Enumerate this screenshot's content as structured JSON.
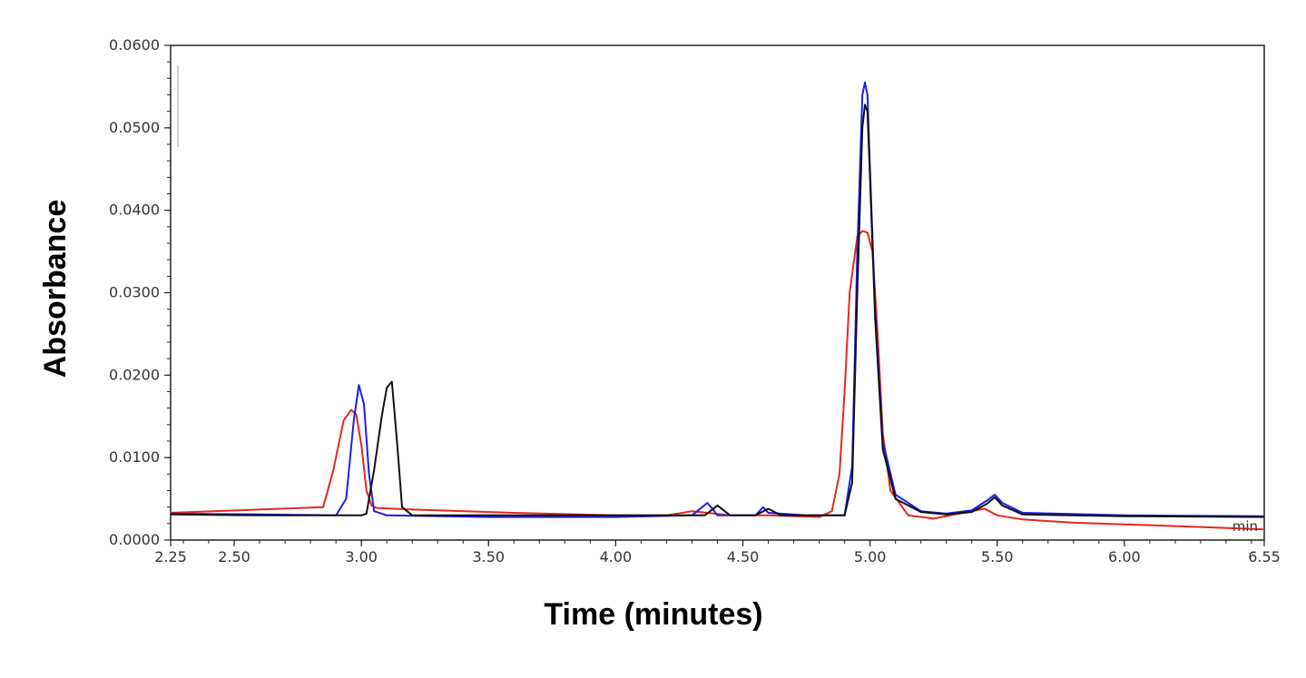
{
  "chart_data": {
    "type": "line",
    "title": "",
    "xlabel": "Time (minutes)",
    "ylabel": "Absorbance",
    "x_unit_label": "min",
    "xlim": [
      2.25,
      6.55
    ],
    "ylim": [
      0.0,
      0.06
    ],
    "x_ticks": [
      {
        "value": 2.25,
        "label": "2.25"
      },
      {
        "value": 2.5,
        "label": "2.50"
      },
      {
        "value": 3.0,
        "label": "3.00"
      },
      {
        "value": 3.5,
        "label": "3.50"
      },
      {
        "value": 4.0,
        "label": "4.00"
      },
      {
        "value": 4.5,
        "label": "4.50"
      },
      {
        "value": 5.0,
        "label": "5.00"
      },
      {
        "value": 5.5,
        "label": "5.50"
      },
      {
        "value": 6.0,
        "label": "6.00"
      },
      {
        "value": 6.55,
        "label": "6.55"
      }
    ],
    "y_ticks": [
      {
        "value": 0.0,
        "label": "0.0000"
      },
      {
        "value": 0.01,
        "label": "0.0100"
      },
      {
        "value": 0.02,
        "label": "0.0200"
      },
      {
        "value": 0.03,
        "label": "0.0300"
      },
      {
        "value": 0.04,
        "label": "0.0400"
      },
      {
        "value": 0.05,
        "label": "0.0500"
      },
      {
        "value": 0.06,
        "label": "0.0600"
      }
    ],
    "grid": false,
    "legend": "none",
    "series": [
      {
        "color": "#e8281e",
        "x": [
          2.25,
          2.6,
          2.85,
          2.89,
          2.93,
          2.96,
          2.98,
          3.0,
          3.02,
          3.04,
          3.06,
          3.2,
          3.6,
          4.0,
          4.2,
          4.3,
          4.36,
          4.45,
          4.6,
          4.8,
          4.85,
          4.88,
          4.9,
          4.92,
          4.95,
          4.97,
          4.99,
          5.01,
          5.03,
          5.05,
          5.08,
          5.15,
          5.25,
          5.35,
          5.45,
          5.5,
          5.6,
          5.8,
          6.2,
          6.55
        ],
        "y": [
          0.0033,
          0.0037,
          0.004,
          0.0085,
          0.0145,
          0.0158,
          0.0152,
          0.0115,
          0.006,
          0.0042,
          0.0039,
          0.0037,
          0.0033,
          0.003,
          0.003,
          0.0035,
          0.0033,
          0.003,
          0.003,
          0.0028,
          0.0035,
          0.008,
          0.018,
          0.03,
          0.0368,
          0.0375,
          0.0373,
          0.035,
          0.025,
          0.013,
          0.006,
          0.003,
          0.0026,
          0.0032,
          0.0038,
          0.003,
          0.0025,
          0.0021,
          0.0017,
          0.0013
        ]
      },
      {
        "color": "#1d1de8",
        "x": [
          2.25,
          2.6,
          2.9,
          2.94,
          2.97,
          2.99,
          3.01,
          3.03,
          3.05,
          3.1,
          3.5,
          4.0,
          4.3,
          4.36,
          4.38,
          4.4,
          4.55,
          4.58,
          4.6,
          4.75,
          4.9,
          4.93,
          4.95,
          4.97,
          4.98,
          4.99,
          5.0,
          5.02,
          5.05,
          5.1,
          5.2,
          5.3,
          5.4,
          5.46,
          5.49,
          5.52,
          5.6,
          6.0,
          6.55
        ],
        "y": [
          0.0032,
          0.0031,
          0.003,
          0.005,
          0.0145,
          0.0188,
          0.0165,
          0.008,
          0.0035,
          0.003,
          0.0028,
          0.0028,
          0.003,
          0.0045,
          0.0038,
          0.003,
          0.003,
          0.004,
          0.0033,
          0.003,
          0.003,
          0.009,
          0.035,
          0.054,
          0.0555,
          0.054,
          0.045,
          0.028,
          0.012,
          0.0055,
          0.0035,
          0.0032,
          0.0036,
          0.0048,
          0.0055,
          0.0045,
          0.0033,
          0.003,
          0.0029
        ]
      },
      {
        "color": "#111111",
        "x": [
          2.25,
          2.6,
          3.0,
          3.02,
          3.05,
          3.08,
          3.1,
          3.12,
          3.14,
          3.16,
          3.2,
          3.6,
          4.0,
          4.35,
          4.4,
          4.45,
          4.55,
          4.6,
          4.65,
          4.8,
          4.9,
          4.93,
          4.95,
          4.97,
          4.98,
          4.99,
          5.0,
          5.02,
          5.05,
          5.1,
          5.2,
          5.3,
          5.4,
          5.46,
          5.49,
          5.52,
          5.6,
          6.0,
          6.55
        ],
        "y": [
          0.0031,
          0.003,
          0.003,
          0.0032,
          0.0085,
          0.015,
          0.0185,
          0.0192,
          0.012,
          0.004,
          0.003,
          0.003,
          0.003,
          0.003,
          0.0042,
          0.003,
          0.003,
          0.0038,
          0.003,
          0.003,
          0.003,
          0.007,
          0.03,
          0.05,
          0.0528,
          0.052,
          0.044,
          0.027,
          0.011,
          0.005,
          0.0034,
          0.0031,
          0.0034,
          0.0044,
          0.0052,
          0.0042,
          0.0031,
          0.0029,
          0.0028
        ]
      }
    ]
  }
}
